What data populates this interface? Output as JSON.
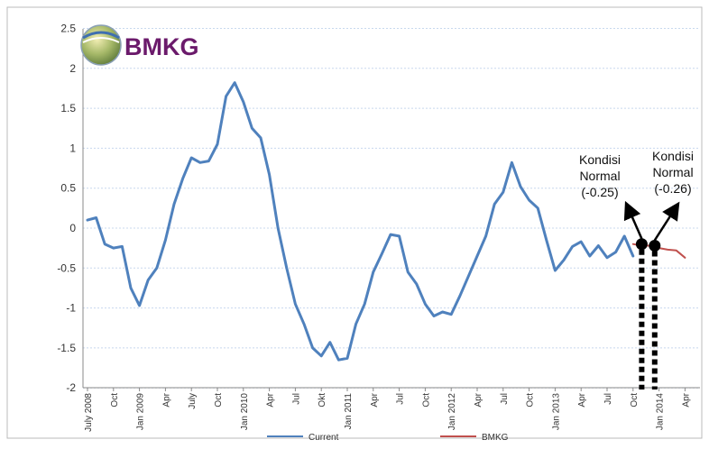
{
  "logo": {
    "text": "BMKG",
    "color": "#6b1a6b"
  },
  "chart_data": {
    "type": "line",
    "ylim": [
      -2,
      2.5
    ],
    "yticks": [
      2.5,
      2,
      1.5,
      1,
      0.5,
      0,
      -0.5,
      -1,
      -1.5,
      -2
    ],
    "xlabels": [
      {
        "i": 0,
        "label": "July 2008"
      },
      {
        "i": 3,
        "label": "Oct"
      },
      {
        "i": 6,
        "label": "Jan 2009"
      },
      {
        "i": 9,
        "label": "Apr"
      },
      {
        "i": 12,
        "label": "July"
      },
      {
        "i": 15,
        "label": "Oct"
      },
      {
        "i": 18,
        "label": "Jan 2010"
      },
      {
        "i": 21,
        "label": "Apr"
      },
      {
        "i": 24,
        "label": "Jul"
      },
      {
        "i": 27,
        "label": "Okt"
      },
      {
        "i": 30,
        "label": "Jan 2011"
      },
      {
        "i": 33,
        "label": "Apr"
      },
      {
        "i": 36,
        "label": "Jul"
      },
      {
        "i": 39,
        "label": "Oct"
      },
      {
        "i": 42,
        "label": "Jan 2012"
      },
      {
        "i": 45,
        "label": "Apr"
      },
      {
        "i": 48,
        "label": "Jul"
      },
      {
        "i": 51,
        "label": "Oct"
      },
      {
        "i": 54,
        "label": "Jan 2013"
      },
      {
        "i": 57,
        "label": "Apr"
      },
      {
        "i": 60,
        "label": "Jul"
      },
      {
        "i": 63,
        "label": "Oct"
      },
      {
        "i": 66,
        "label": "Jan 2014"
      },
      {
        "i": 69,
        "label": "Apr"
      }
    ],
    "series": [
      {
        "name": "Current",
        "color": "#4f81bd",
        "start": 0,
        "values": [
          0.1,
          0.13,
          -0.2,
          -0.25,
          -0.23,
          -0.75,
          -0.97,
          -0.65,
          -0.5,
          -0.15,
          0.3,
          0.62,
          0.88,
          0.82,
          0.84,
          1.05,
          1.65,
          1.82,
          1.58,
          1.25,
          1.13,
          0.67,
          0.0,
          -0.5,
          -0.95,
          -1.2,
          -1.5,
          -1.6,
          -1.43,
          -1.65,
          -1.63,
          -1.2,
          -0.95,
          -0.55,
          -0.32,
          -0.08,
          -0.1,
          -0.55,
          -0.7,
          -0.95,
          -1.1,
          -1.05,
          -1.08,
          -0.85,
          -0.6,
          -0.35,
          -0.1,
          0.3,
          0.45,
          0.82,
          0.52,
          0.35,
          0.25,
          -0.15,
          -0.53,
          -0.4,
          -0.23,
          -0.17,
          -0.35,
          -0.22,
          -0.37,
          -0.3,
          -0.1,
          -0.35
        ]
      },
      {
        "name": "BMKG",
        "color": "#c0504d",
        "start": 63,
        "values": [
          -0.2,
          -0.22,
          -0.22,
          -0.25,
          -0.27,
          -0.28,
          -0.37
        ]
      }
    ],
    "markers": [
      {
        "i": 64,
        "value": -0.2
      },
      {
        "i": 65.5,
        "value": -0.22
      }
    ],
    "annotations": [
      {
        "lines": [
          "Kondisi",
          "Normal",
          "(-0.25)"
        ]
      },
      {
        "lines": [
          "Kondisi",
          "Normal",
          "(-0.26)"
        ]
      }
    ]
  }
}
